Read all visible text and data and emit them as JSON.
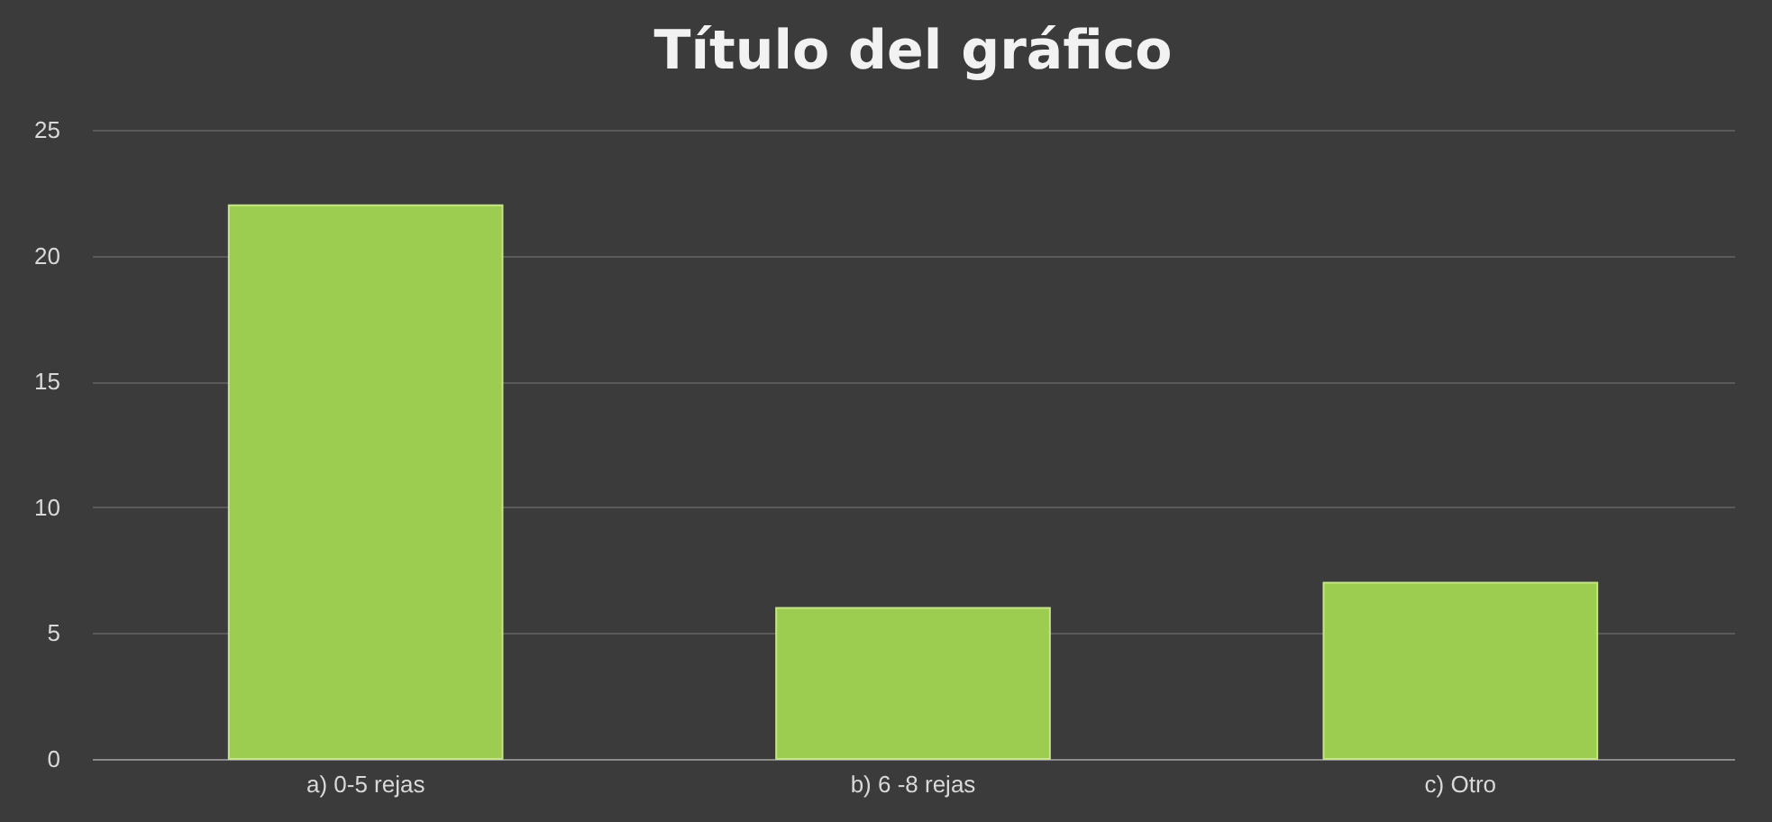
{
  "chart_data": {
    "type": "bar",
    "title": "Título del gráfico",
    "categories": [
      "a) 0-5 rejas",
      "b) 6 -8 rejas",
      "c) Otro"
    ],
    "values": [
      22,
      6,
      7
    ],
    "color": "#9ccc50",
    "ylim": [
      0,
      25
    ],
    "yticks": [
      0,
      5,
      10,
      15,
      20,
      25
    ],
    "grid": "y"
  }
}
